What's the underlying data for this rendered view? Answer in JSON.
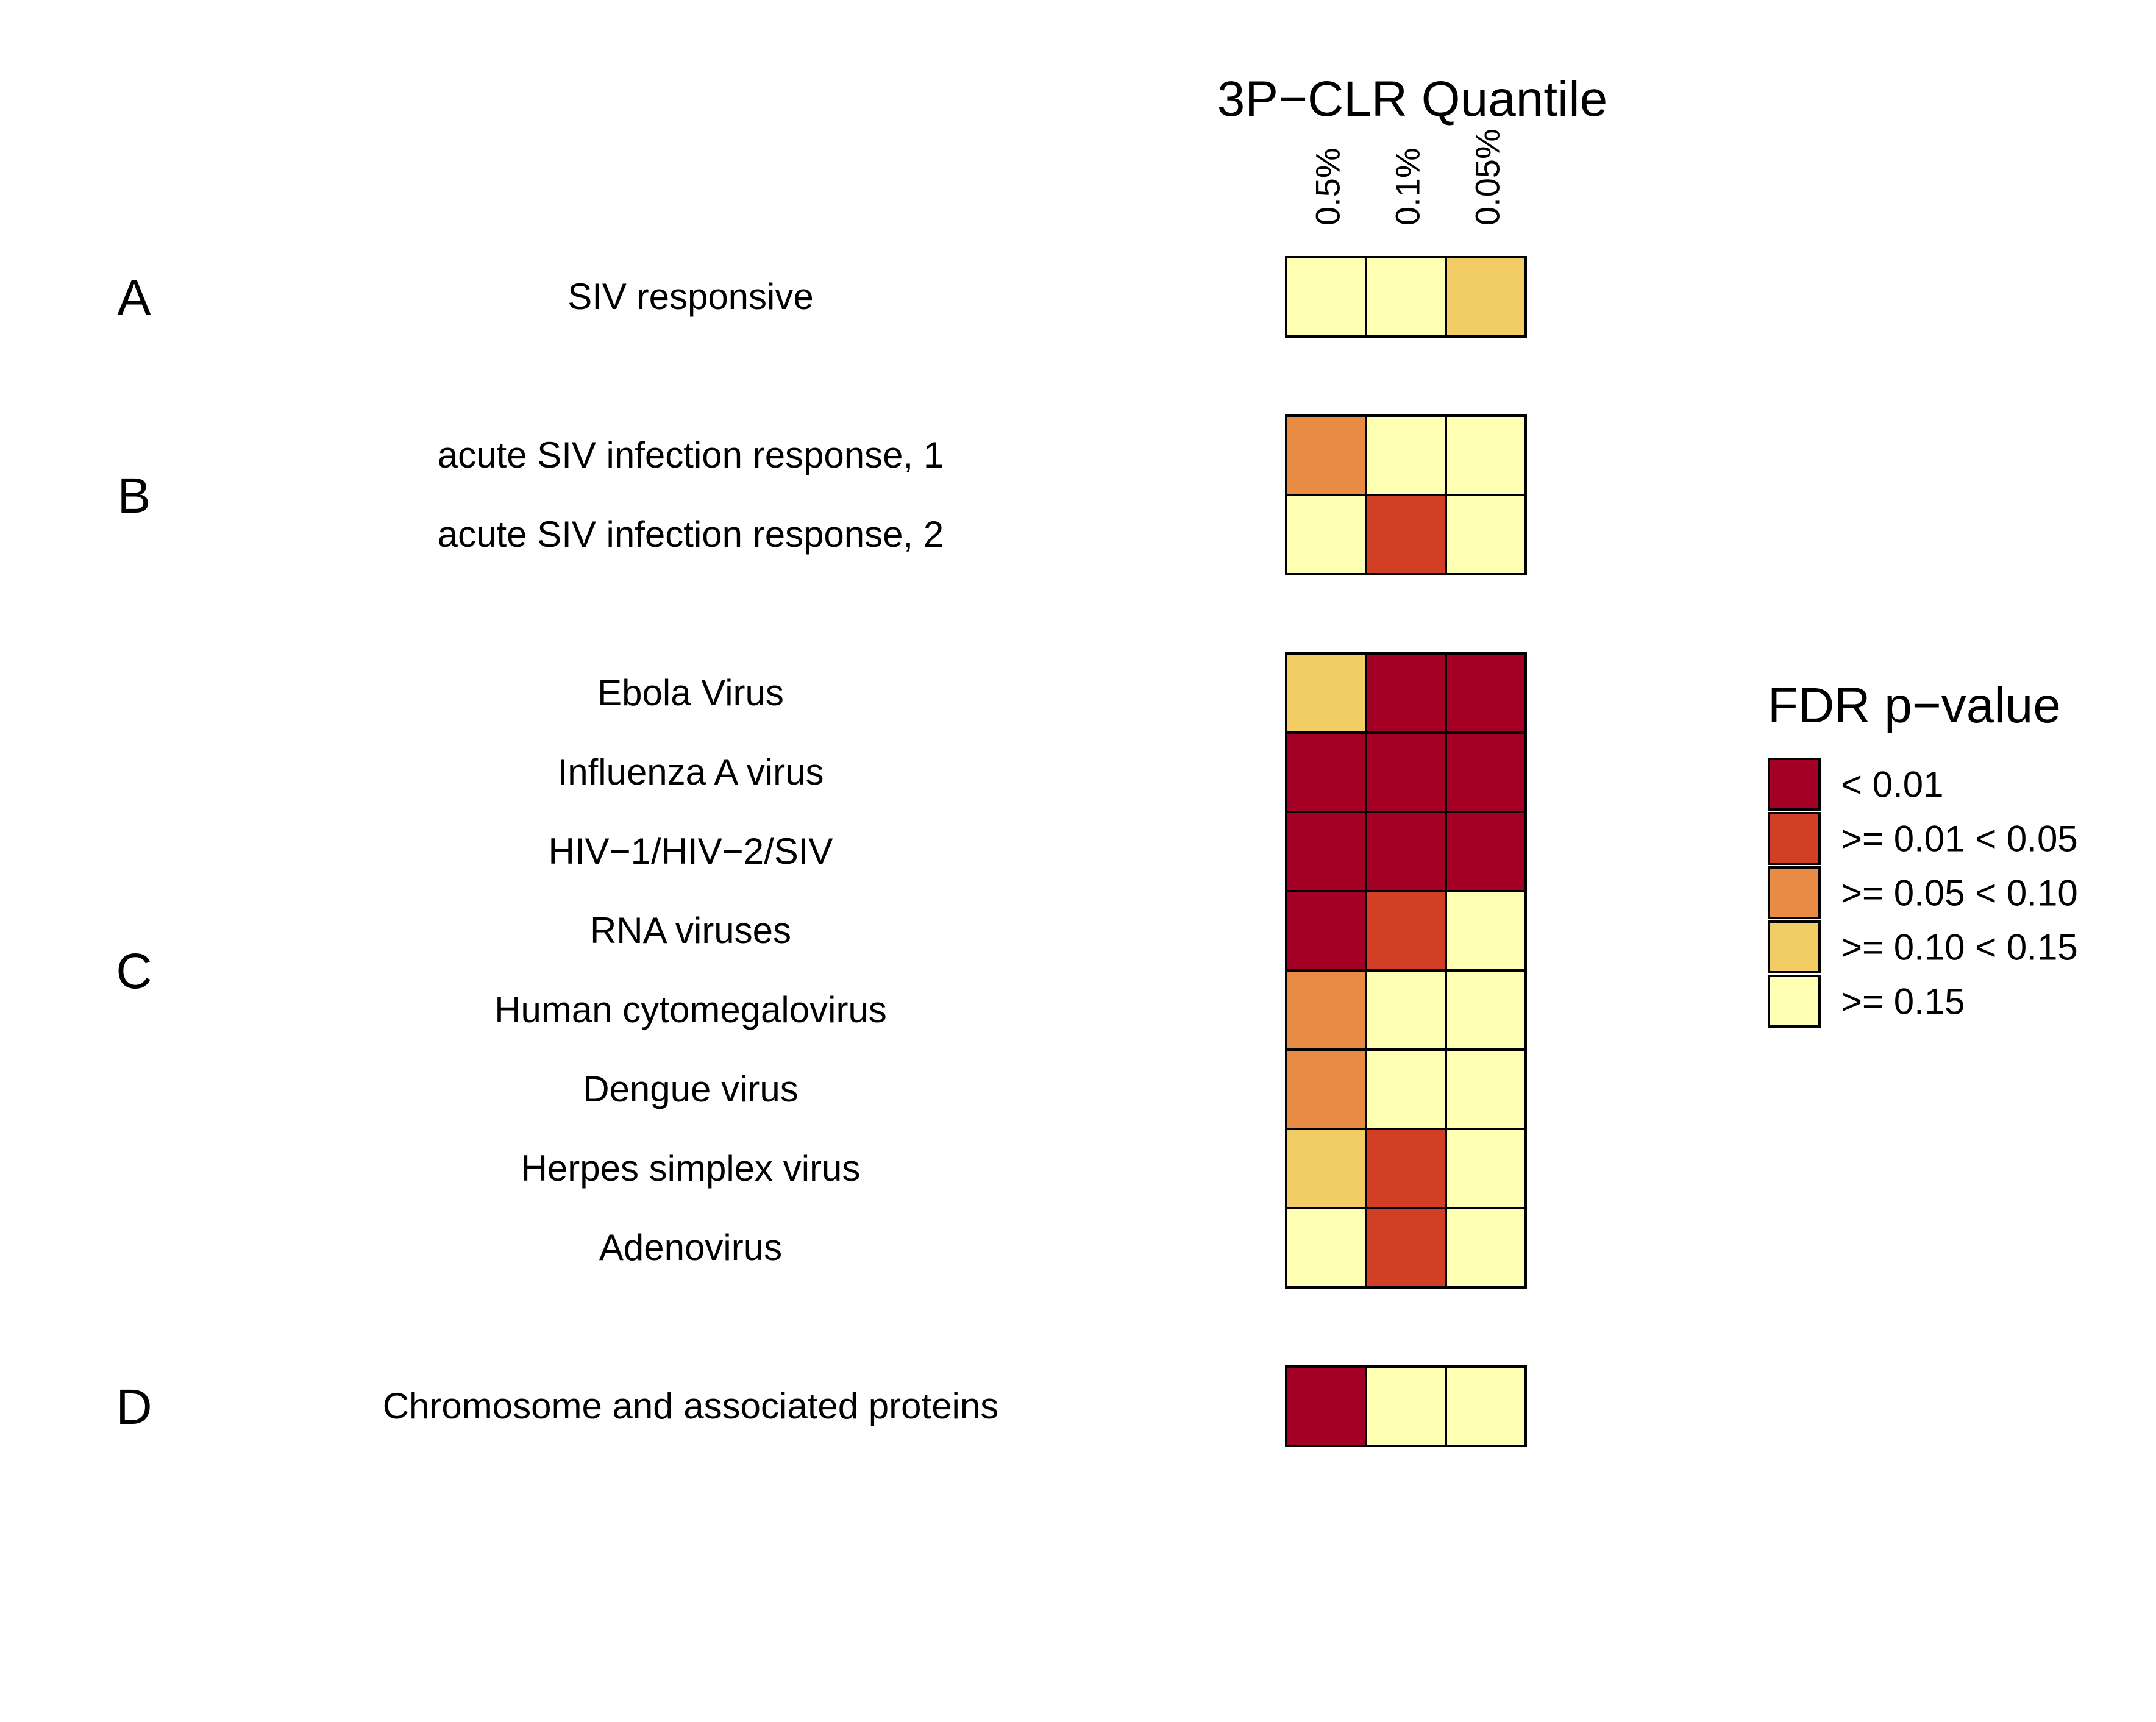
{
  "chart_data": {
    "type": "heatmap",
    "title": "3P−CLR Quantile",
    "columns": [
      "0.5%",
      "0.1%",
      "0.05%"
    ],
    "groups": [
      {
        "label": "A",
        "rows": [
          {
            "name": "SIV responsive",
            "categories": [
              4,
              4,
              3
            ]
          }
        ]
      },
      {
        "label": "B",
        "rows": [
          {
            "name": "acute SIV infection response, 1",
            "categories": [
              2,
              4,
              4
            ]
          },
          {
            "name": "acute SIV infection response, 2",
            "categories": [
              4,
              1,
              4
            ]
          }
        ]
      },
      {
        "label": "C",
        "rows": [
          {
            "name": "Ebola Virus",
            "categories": [
              3,
              0,
              0
            ]
          },
          {
            "name": "Influenza A virus",
            "categories": [
              0,
              0,
              0
            ]
          },
          {
            "name": "HIV−1/HIV−2/SIV",
            "categories": [
              0,
              0,
              0
            ]
          },
          {
            "name": "RNA viruses",
            "categories": [
              0,
              1,
              4
            ]
          },
          {
            "name": "Human cytomegalovirus",
            "categories": [
              2,
              4,
              4
            ]
          },
          {
            "name": "Dengue virus",
            "categories": [
              2,
              4,
              4
            ]
          },
          {
            "name": "Herpes simplex virus",
            "categories": [
              3,
              1,
              4
            ]
          },
          {
            "name": "Adenovirus",
            "categories": [
              4,
              1,
              4
            ]
          }
        ]
      },
      {
        "label": "D",
        "rows": [
          {
            "name": "Chromosome and associated proteins",
            "categories": [
              0,
              4,
              4
            ]
          }
        ]
      }
    ],
    "legend": {
      "title": "FDR p−value",
      "position": "right",
      "entries": [
        {
          "label": "< 0.01",
          "color": "#a50026"
        },
        {
          "label": ">= 0.01 < 0.05",
          "color": "#d33f24"
        },
        {
          "label": ">= 0.05 < 0.10",
          "color": "#e88b45"
        },
        {
          "label": ">= 0.10 < 0.15",
          "color": "#f2cd66"
        },
        {
          "label": ">= 0.15",
          "color": "#ffffb3"
        }
      ]
    }
  }
}
